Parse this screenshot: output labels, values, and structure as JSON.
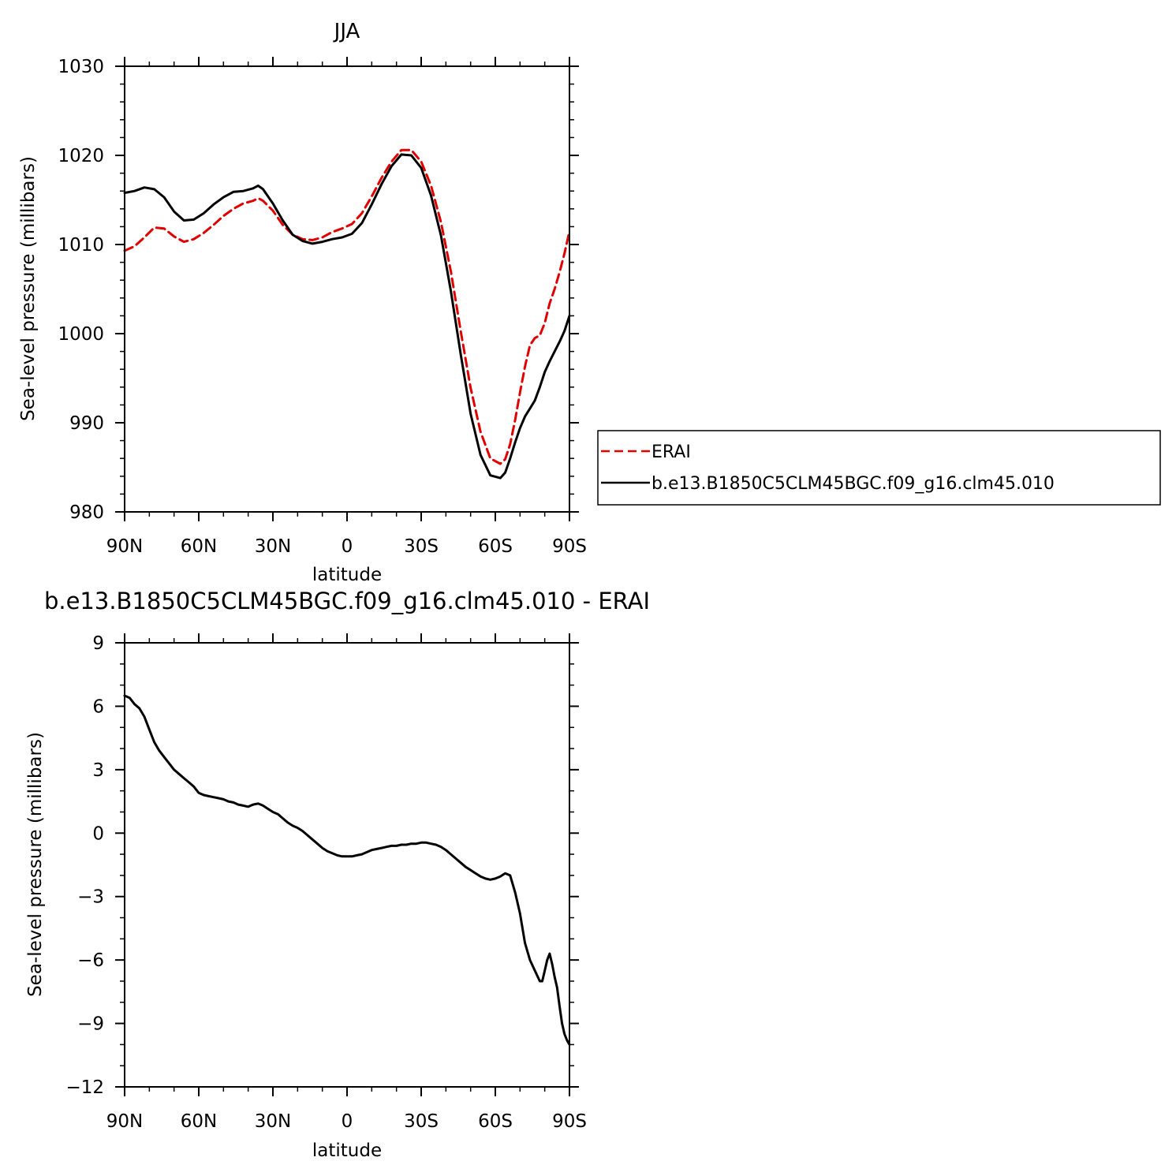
{
  "chart_data": [
    {
      "type": "line",
      "title": "JJA",
      "xlabel": "latitude",
      "ylabel": "Sea-level pressure (millibars)",
      "xlim": [
        90,
        -90
      ],
      "ylim": [
        980,
        1030
      ],
      "xticks": [
        {
          "value": 90,
          "label": "90N"
        },
        {
          "value": 60,
          "label": "60N"
        },
        {
          "value": 30,
          "label": "30N"
        },
        {
          "value": 0,
          "label": "0"
        },
        {
          "value": -30,
          "label": "30S"
        },
        {
          "value": -60,
          "label": "60S"
        },
        {
          "value": -90,
          "label": "90S"
        }
      ],
      "yticks": [
        {
          "value": 980,
          "label": "980"
        },
        {
          "value": 990,
          "label": "990"
        },
        {
          "value": 1000,
          "label": "1000"
        },
        {
          "value": 1010,
          "label": "1010"
        },
        {
          "value": 1020,
          "label": "1020"
        },
        {
          "value": 1030,
          "label": "1030"
        }
      ],
      "legend_position": "right",
      "series": [
        {
          "name": "ERAI",
          "color": "#e00000",
          "style": "dashed",
          "x": [
            90,
            86,
            82,
            78,
            74,
            70,
            66,
            62,
            58,
            54,
            50,
            46,
            42,
            38,
            36,
            34,
            30,
            26,
            22,
            18,
            14,
            10,
            6,
            2,
            -2,
            -6,
            -10,
            -14,
            -18,
            -22,
            -26,
            -30,
            -34,
            -38,
            -42,
            -46,
            -50,
            -54,
            -58,
            -62,
            -64,
            -66,
            -68,
            -70,
            -72,
            -74,
            -76,
            -78,
            -80,
            -82,
            -84,
            -86,
            -88,
            -90
          ],
          "y": [
            1009.3,
            1009.8,
            1010.8,
            1011.9,
            1011.8,
            1010.9,
            1010.3,
            1010.6,
            1011.3,
            1012.2,
            1013.2,
            1014.0,
            1014.6,
            1014.9,
            1015.2,
            1014.9,
            1013.8,
            1012.2,
            1011.1,
            1010.6,
            1010.5,
            1010.8,
            1011.4,
            1011.8,
            1012.3,
            1013.5,
            1015.4,
            1017.5,
            1019.3,
            1020.6,
            1020.6,
            1019.3,
            1016.6,
            1012.5,
            1007.0,
            1000.3,
            993.9,
            989.0,
            986.0,
            985.4,
            985.9,
            987.6,
            990.3,
            993.4,
            996.3,
            998.7,
            999.5,
            999.8,
            1001.2,
            1003.4,
            1005.0,
            1006.9,
            1009.0,
            1011.5
          ]
        },
        {
          "name": "b.e13.B1850C5CLM45BGC.f09_g16.clm45.010",
          "color": "#000000",
          "style": "solid",
          "x": [
            90,
            86,
            82,
            78,
            74,
            70,
            66,
            62,
            58,
            54,
            50,
            46,
            42,
            38,
            36,
            34,
            30,
            26,
            22,
            18,
            14,
            10,
            6,
            2,
            -2,
            -6,
            -10,
            -14,
            -18,
            -22,
            -26,
            -30,
            -34,
            -38,
            -42,
            -46,
            -50,
            -54,
            -58,
            -62,
            -64,
            -66,
            -68,
            -70,
            -72,
            -74,
            -76,
            -78,
            -80,
            -82,
            -84,
            -86,
            -88,
            -90
          ],
          "y": [
            1015.8,
            1016.0,
            1016.4,
            1016.2,
            1015.3,
            1013.7,
            1012.7,
            1012.8,
            1013.5,
            1014.5,
            1015.3,
            1015.9,
            1016.0,
            1016.3,
            1016.6,
            1016.2,
            1014.6,
            1012.7,
            1011.1,
            1010.4,
            1010.1,
            1010.3,
            1010.6,
            1010.8,
            1011.2,
            1012.4,
            1014.5,
            1016.8,
            1018.8,
            1020.1,
            1020.0,
            1018.6,
            1015.5,
            1011.0,
            1004.8,
            997.7,
            991.0,
            986.4,
            984.1,
            983.8,
            984.4,
            986.0,
            987.8,
            989.4,
            990.7,
            991.6,
            992.5,
            994.0,
            995.7,
            996.9,
            998.0,
            999.1,
            1000.3,
            1002.0
          ]
        }
      ]
    },
    {
      "type": "line",
      "title": "b.e13.B1850C5CLM45BGC.f09_g16.clm45.010 - ERAI",
      "xlabel": "latitude",
      "ylabel": "Sea-level pressure (millibars)",
      "xlim": [
        90,
        -90
      ],
      "ylim": [
        -12,
        9
      ],
      "xticks": [
        {
          "value": 90,
          "label": "90N"
        },
        {
          "value": 60,
          "label": "60N"
        },
        {
          "value": 30,
          "label": "30N"
        },
        {
          "value": 0,
          "label": "0"
        },
        {
          "value": -30,
          "label": "30S"
        },
        {
          "value": -60,
          "label": "60S"
        },
        {
          "value": -90,
          "label": "90S"
        }
      ],
      "yticks": [
        {
          "value": -12,
          "label": "−12"
        },
        {
          "value": -9,
          "label": "−9"
        },
        {
          "value": -6,
          "label": "−6"
        },
        {
          "value": -3,
          "label": "−3"
        },
        {
          "value": 0,
          "label": "0"
        },
        {
          "value": 3,
          "label": "3"
        },
        {
          "value": 6,
          "label": "6"
        },
        {
          "value": 9,
          "label": "9"
        }
      ],
      "series": [
        {
          "name": "",
          "color": "#000000",
          "style": "solid",
          "x": [
            90,
            88,
            86,
            84,
            82,
            80,
            78,
            76,
            74,
            72,
            70,
            68,
            66,
            64,
            62,
            60,
            58,
            56,
            54,
            52,
            50,
            48,
            46,
            44,
            42,
            40,
            38,
            36,
            34,
            32,
            30,
            28,
            26,
            24,
            22,
            20,
            18,
            16,
            14,
            12,
            10,
            8,
            6,
            4,
            2,
            0,
            -2,
            -4,
            -6,
            -8,
            -10,
            -12,
            -14,
            -16,
            -18,
            -20,
            -22,
            -24,
            -26,
            -28,
            -30,
            -32,
            -34,
            -36,
            -38,
            -40,
            -42,
            -44,
            -46,
            -48,
            -50,
            -52,
            -54,
            -56,
            -58,
            -60,
            -62,
            -64,
            -66,
            -68,
            -70,
            -72,
            -74,
            -76,
            -78,
            -79,
            -80,
            -81,
            -82,
            -83,
            -84,
            -85,
            -86,
            -87,
            -88,
            -89,
            -90
          ],
          "y": [
            6.5,
            6.4,
            6.1,
            5.9,
            5.5,
            4.9,
            4.3,
            3.9,
            3.6,
            3.3,
            3.0,
            2.8,
            2.6,
            2.4,
            2.2,
            1.9,
            1.8,
            1.75,
            1.7,
            1.65,
            1.6,
            1.5,
            1.45,
            1.35,
            1.3,
            1.25,
            1.35,
            1.4,
            1.3,
            1.15,
            1.0,
            0.9,
            0.7,
            0.5,
            0.35,
            0.25,
            0.1,
            -0.1,
            -0.3,
            -0.5,
            -0.7,
            -0.85,
            -0.95,
            -1.05,
            -1.1,
            -1.1,
            -1.1,
            -1.05,
            -1.0,
            -0.9,
            -0.8,
            -0.75,
            -0.7,
            -0.65,
            -0.6,
            -0.6,
            -0.55,
            -0.55,
            -0.5,
            -0.5,
            -0.45,
            -0.45,
            -0.5,
            -0.55,
            -0.65,
            -0.8,
            -1.0,
            -1.2,
            -1.4,
            -1.6,
            -1.75,
            -1.9,
            -2.05,
            -2.15,
            -2.2,
            -2.15,
            -2.05,
            -1.9,
            -2.0,
            -2.8,
            -3.8,
            -5.2,
            -6.0,
            -6.5,
            -7.0,
            -7.0,
            -6.5,
            -6.0,
            -5.7,
            -6.2,
            -6.8,
            -7.3,
            -8.2,
            -9.0,
            -9.5,
            -9.8,
            -10.0
          ]
        }
      ]
    }
  ]
}
